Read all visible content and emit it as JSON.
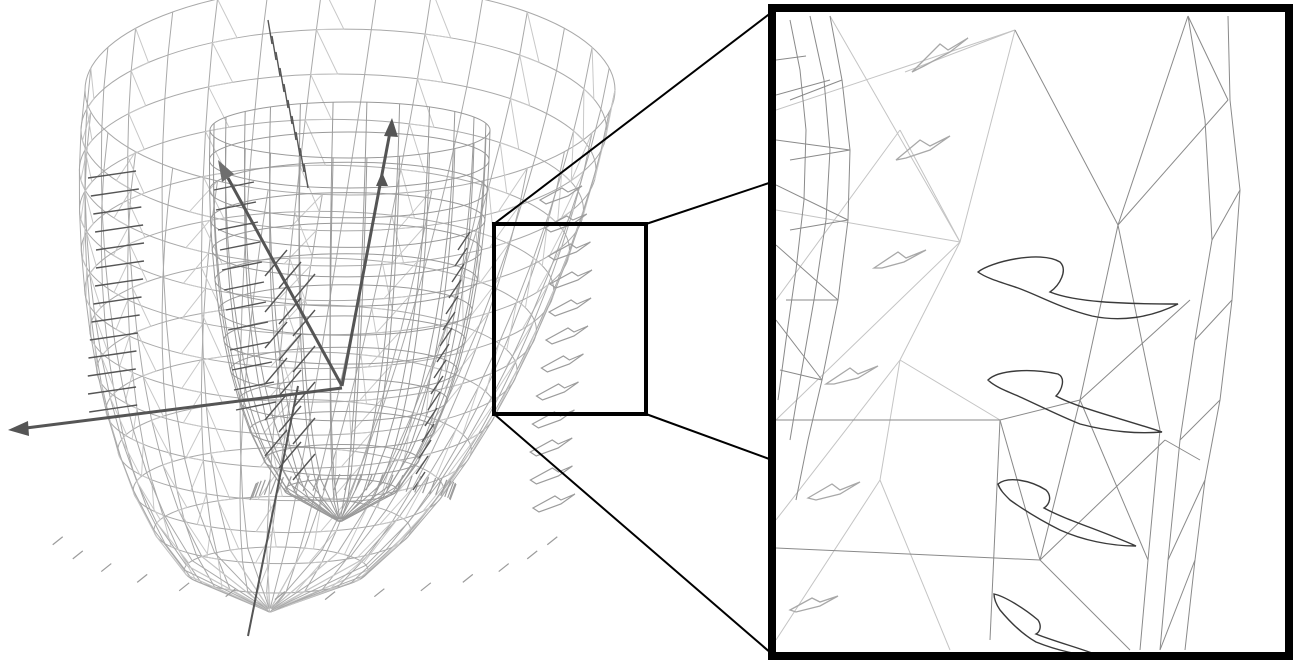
{
  "figure": {
    "left_panel": "wireframe-heart-model",
    "right_panel": "zoomed-detail",
    "colors": {
      "mesh": "#a9a9a9",
      "fiber": "#555555",
      "axis": "#555555",
      "frame": "#000000",
      "background": "#ffffff"
    }
  }
}
